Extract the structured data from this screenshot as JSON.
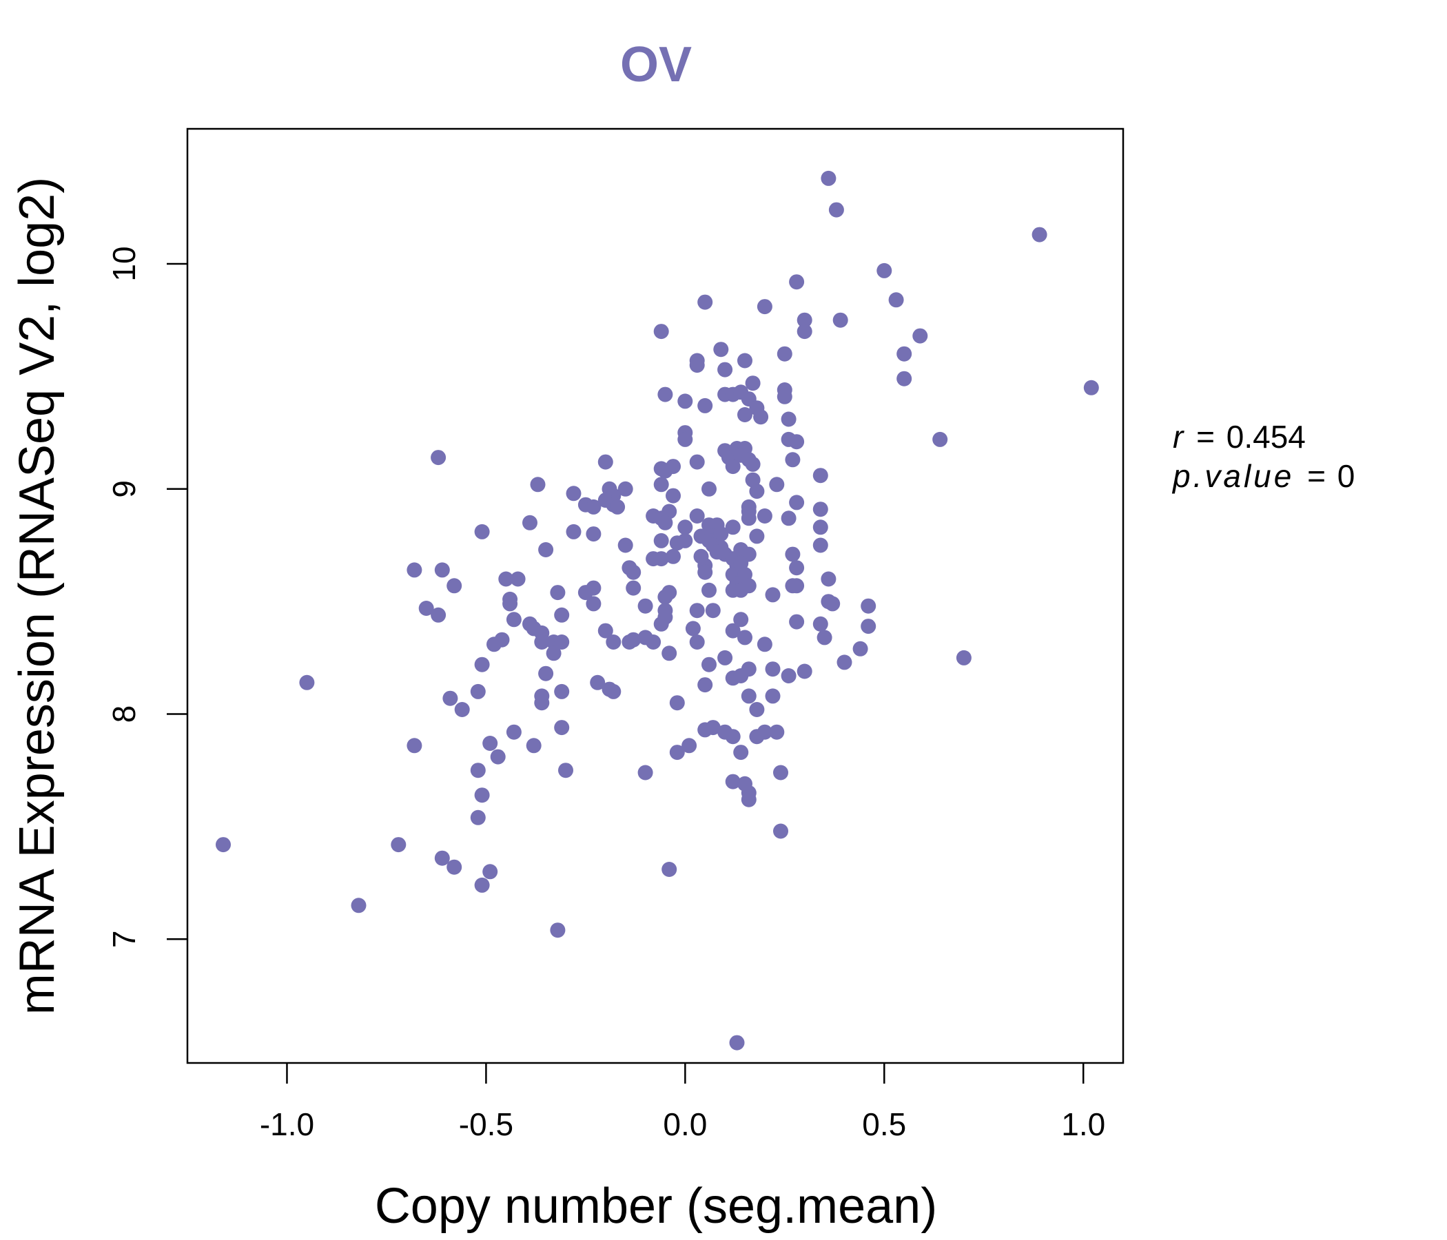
{
  "chart_data": {
    "type": "scatter",
    "title": "OV",
    "xlabel": "Copy number (seg.mean)",
    "ylabel": "mRNA Expression (RNASeq V2, log2)",
    "xlim": [
      -1.25,
      1.1
    ],
    "ylim": [
      6.45,
      10.6
    ],
    "x_ticks": [
      -1.0,
      -0.5,
      0.0,
      0.5,
      1.0
    ],
    "x_tick_labels": [
      "-1.0",
      "-0.5",
      "0.0",
      "0.5",
      "1.0"
    ],
    "y_ticks": [
      7,
      8,
      9,
      10
    ],
    "y_tick_labels": [
      "7",
      "8",
      "9",
      "10"
    ],
    "point_color": "#7570b3",
    "grid": false,
    "annotation": {
      "r_label": "r",
      "r_value": "0.454",
      "p_label": "p.value",
      "p_value": "0"
    },
    "points": [
      [
        0.36,
        10.38
      ],
      [
        0.38,
        10.24
      ],
      [
        0.89,
        10.13
      ],
      [
        0.5,
        9.97
      ],
      [
        0.28,
        9.92
      ],
      [
        0.53,
        9.84
      ],
      [
        0.05,
        9.83
      ],
      [
        0.2,
        9.81
      ],
      [
        0.3,
        9.75
      ],
      [
        0.39,
        9.75
      ],
      [
        0.3,
        9.7
      ],
      [
        0.59,
        9.68
      ],
      [
        -0.06,
        9.7
      ],
      [
        0.09,
        9.62
      ],
      [
        0.25,
        9.6
      ],
      [
        0.55,
        9.6
      ],
      [
        0.03,
        9.57
      ],
      [
        0.03,
        9.55
      ],
      [
        0.15,
        9.57
      ],
      [
        0.1,
        9.53
      ],
      [
        0.17,
        9.47
      ],
      [
        0.55,
        9.49
      ],
      [
        1.02,
        9.45
      ],
      [
        0.25,
        9.44
      ],
      [
        0.25,
        9.41
      ],
      [
        -0.05,
        9.42
      ],
      [
        0.1,
        9.42
      ],
      [
        0.12,
        9.42
      ],
      [
        0.14,
        9.43
      ],
      [
        0.16,
        9.4
      ],
      [
        0.0,
        9.39
      ],
      [
        0.05,
        9.37
      ],
      [
        0.18,
        9.36
      ],
      [
        0.15,
        9.33
      ],
      [
        0.19,
        9.32
      ],
      [
        0.26,
        9.31
      ],
      [
        0.0,
        9.25
      ],
      [
        0.0,
        9.22
      ],
      [
        0.26,
        9.22
      ],
      [
        0.28,
        9.21
      ],
      [
        0.64,
        9.22
      ],
      [
        -0.62,
        9.14
      ],
      [
        -0.2,
        9.12
      ],
      [
        0.03,
        9.12
      ],
      [
        0.1,
        9.17
      ],
      [
        0.11,
        9.14
      ],
      [
        0.13,
        9.18
      ],
      [
        0.15,
        9.18
      ],
      [
        0.14,
        9.15
      ],
      [
        0.16,
        9.13
      ],
      [
        0.17,
        9.11
      ],
      [
        0.12,
        9.1
      ],
      [
        0.27,
        9.13
      ],
      [
        -0.06,
        9.09
      ],
      [
        -0.05,
        9.08
      ],
      [
        -0.03,
        9.1
      ],
      [
        0.34,
        9.06
      ],
      [
        -0.37,
        9.02
      ],
      [
        -0.06,
        9.02
      ],
      [
        0.17,
        9.04
      ],
      [
        0.23,
        9.02
      ],
      [
        -0.19,
        9.0
      ],
      [
        -0.15,
        9.0
      ],
      [
        0.06,
        9.0
      ],
      [
        0.18,
        8.99
      ],
      [
        -0.28,
        8.98
      ],
      [
        -0.18,
        8.97
      ],
      [
        -0.03,
        8.97
      ],
      [
        -0.2,
        8.95
      ],
      [
        -0.18,
        8.93
      ],
      [
        -0.25,
        8.93
      ],
      [
        -0.23,
        8.92
      ],
      [
        -0.17,
        8.92
      ],
      [
        0.16,
        8.92
      ],
      [
        0.28,
        8.94
      ],
      [
        0.34,
        8.91
      ],
      [
        -0.04,
        8.9
      ],
      [
        0.16,
        8.9
      ],
      [
        -0.08,
        8.88
      ],
      [
        -0.06,
        8.87
      ],
      [
        0.03,
        8.88
      ],
      [
        0.16,
        8.87
      ],
      [
        0.2,
        8.88
      ],
      [
        0.26,
        8.87
      ],
      [
        -0.39,
        8.85
      ],
      [
        -0.05,
        8.85
      ],
      [
        0.0,
        8.83
      ],
      [
        0.06,
        8.84
      ],
      [
        0.08,
        8.84
      ],
      [
        0.12,
        8.83
      ],
      [
        0.34,
        8.83
      ],
      [
        -0.51,
        8.81
      ],
      [
        -0.28,
        8.81
      ],
      [
        -0.23,
        8.8
      ],
      [
        0.04,
        8.79
      ],
      [
        0.07,
        8.79
      ],
      [
        0.09,
        8.8
      ],
      [
        0.18,
        8.79
      ],
      [
        -0.06,
        8.77
      ],
      [
        -0.02,
        8.76
      ],
      [
        0.0,
        8.77
      ],
      [
        0.06,
        8.77
      ],
      [
        0.07,
        8.75
      ],
      [
        0.09,
        8.74
      ],
      [
        -0.15,
        8.75
      ],
      [
        -0.35,
        8.73
      ],
      [
        0.14,
        8.73
      ],
      [
        0.34,
        8.75
      ],
      [
        0.08,
        8.72
      ],
      [
        0.1,
        8.71
      ],
      [
        0.16,
        8.71
      ],
      [
        0.27,
        8.71
      ],
      [
        0.04,
        8.7
      ],
      [
        -0.08,
        8.69
      ],
      [
        -0.06,
        8.69
      ],
      [
        -0.03,
        8.7
      ],
      [
        0.12,
        8.69
      ],
      [
        0.13,
        8.66
      ],
      [
        0.14,
        8.67
      ],
      [
        -0.14,
        8.65
      ],
      [
        0.05,
        8.66
      ],
      [
        0.05,
        8.63
      ],
      [
        0.28,
        8.65
      ],
      [
        -0.68,
        8.64
      ],
      [
        -0.61,
        8.64
      ],
      [
        -0.13,
        8.63
      ],
      [
        0.12,
        8.62
      ],
      [
        0.14,
        8.6
      ],
      [
        0.15,
        8.62
      ],
      [
        -0.45,
        8.6
      ],
      [
        -0.42,
        8.6
      ],
      [
        0.36,
        8.6
      ],
      [
        -0.58,
        8.57
      ],
      [
        -0.23,
        8.56
      ],
      [
        0.13,
        8.58
      ],
      [
        0.16,
        8.57
      ],
      [
        0.27,
        8.57
      ],
      [
        0.28,
        8.57
      ],
      [
        -0.13,
        8.56
      ],
      [
        -0.04,
        8.54
      ],
      [
        0.06,
        8.55
      ],
      [
        0.12,
        8.55
      ],
      [
        0.14,
        8.55
      ],
      [
        -0.32,
        8.54
      ],
      [
        -0.25,
        8.54
      ],
      [
        -0.05,
        8.52
      ],
      [
        0.22,
        8.53
      ],
      [
        -0.44,
        8.51
      ],
      [
        -0.44,
        8.49
      ],
      [
        -0.23,
        8.49
      ],
      [
        0.36,
        8.5
      ],
      [
        0.37,
        8.49
      ],
      [
        -0.1,
        8.48
      ],
      [
        -0.05,
        8.46
      ],
      [
        0.03,
        8.46
      ],
      [
        0.07,
        8.46
      ],
      [
        0.46,
        8.48
      ],
      [
        -0.65,
        8.47
      ],
      [
        -0.62,
        8.44
      ],
      [
        -0.31,
        8.44
      ],
      [
        -0.05,
        8.43
      ],
      [
        -0.43,
        8.42
      ],
      [
        -0.06,
        8.4
      ],
      [
        0.14,
        8.42
      ],
      [
        0.28,
        8.41
      ],
      [
        0.34,
        8.4
      ],
      [
        0.46,
        8.39
      ],
      [
        -0.39,
        8.4
      ],
      [
        -0.38,
        8.38
      ],
      [
        -0.2,
        8.37
      ],
      [
        0.02,
        8.38
      ],
      [
        0.12,
        8.37
      ],
      [
        0.35,
        8.34
      ],
      [
        -0.36,
        8.36
      ],
      [
        -0.46,
        8.33
      ],
      [
        -0.36,
        8.32
      ],
      [
        -0.33,
        8.32
      ],
      [
        -0.31,
        8.32
      ],
      [
        -0.18,
        8.32
      ],
      [
        -0.14,
        8.32
      ],
      [
        -0.13,
        8.33
      ],
      [
        -0.1,
        8.34
      ],
      [
        -0.08,
        8.32
      ],
      [
        0.03,
        8.32
      ],
      [
        0.15,
        8.34
      ],
      [
        0.2,
        8.31
      ],
      [
        -0.48,
        8.31
      ],
      [
        -0.33,
        8.27
      ],
      [
        -0.04,
        8.27
      ],
      [
        0.44,
        8.29
      ],
      [
        0.1,
        8.25
      ],
      [
        0.7,
        8.25
      ],
      [
        -0.51,
        8.22
      ],
      [
        0.06,
        8.22
      ],
      [
        0.4,
        8.23
      ],
      [
        0.16,
        8.2
      ],
      [
        0.22,
        8.2
      ],
      [
        -0.35,
        8.18
      ],
      [
        0.12,
        8.16
      ],
      [
        0.14,
        8.17
      ],
      [
        0.26,
        8.17
      ],
      [
        0.3,
        8.19
      ],
      [
        -0.22,
        8.14
      ],
      [
        -0.19,
        8.11
      ],
      [
        -0.18,
        8.1
      ],
      [
        -0.31,
        8.1
      ],
      [
        0.05,
        8.13
      ],
      [
        -0.52,
        8.1
      ],
      [
        -0.59,
        8.07
      ],
      [
        -0.36,
        8.08
      ],
      [
        -0.36,
        8.05
      ],
      [
        0.16,
        8.08
      ],
      [
        0.22,
        8.08
      ],
      [
        -0.02,
        8.05
      ],
      [
        -0.56,
        8.02
      ],
      [
        0.18,
        8.02
      ],
      [
        0.07,
        7.94
      ],
      [
        0.05,
        7.93
      ],
      [
        0.1,
        7.92
      ],
      [
        0.2,
        7.92
      ],
      [
        0.23,
        7.92
      ],
      [
        -0.43,
        7.92
      ],
      [
        -0.31,
        7.94
      ],
      [
        0.12,
        7.9
      ],
      [
        0.18,
        7.9
      ],
      [
        -0.68,
        7.86
      ],
      [
        -0.49,
        7.87
      ],
      [
        -0.38,
        7.86
      ],
      [
        0.01,
        7.86
      ],
      [
        -0.02,
        7.83
      ],
      [
        0.14,
        7.83
      ],
      [
        -0.47,
        7.81
      ],
      [
        -0.52,
        7.75
      ],
      [
        -0.3,
        7.75
      ],
      [
        -0.1,
        7.74
      ],
      [
        0.24,
        7.74
      ],
      [
        0.12,
        7.7
      ],
      [
        0.15,
        7.69
      ],
      [
        0.16,
        7.65
      ],
      [
        0.16,
        7.62
      ],
      [
        -0.51,
        7.64
      ],
      [
        -0.52,
        7.54
      ],
      [
        0.24,
        7.48
      ],
      [
        -1.16,
        7.42
      ],
      [
        -0.72,
        7.42
      ],
      [
        -0.61,
        7.36
      ],
      [
        -0.58,
        7.32
      ],
      [
        -0.49,
        7.3
      ],
      [
        -0.04,
        7.31
      ],
      [
        -0.51,
        7.24
      ],
      [
        -0.82,
        7.15
      ],
      [
        -0.32,
        7.04
      ],
      [
        0.13,
        6.54
      ],
      [
        -0.95,
        8.14
      ]
    ]
  }
}
